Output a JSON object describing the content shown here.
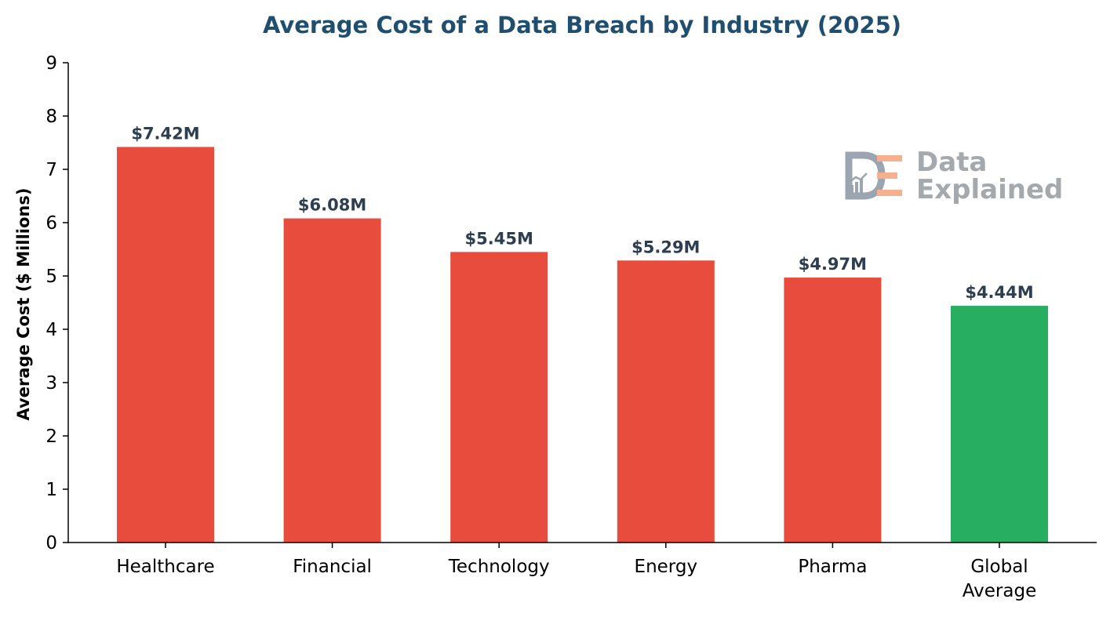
{
  "chart_data": {
    "type": "bar",
    "title": "Average Cost of a Data Breach by Industry (2025)",
    "xlabel": "",
    "ylabel": "Average Cost ($ Millions)",
    "ylim": [
      0,
      9
    ],
    "yticks": [
      0,
      1,
      2,
      3,
      4,
      5,
      6,
      7,
      8,
      9
    ],
    "grid": false,
    "categories": [
      "Healthcare",
      "Financial",
      "Technology",
      "Energy",
      "Pharma",
      "Global\nAverage"
    ],
    "values": [
      7.42,
      6.08,
      5.45,
      5.29,
      4.97,
      4.44
    ],
    "data_labels": [
      "$7.42M",
      "$6.08M",
      "$5.45M",
      "$5.29M",
      "$4.97M",
      "$4.44M"
    ],
    "bar_colors": [
      "#e74c3c",
      "#e74c3c",
      "#e74c3c",
      "#e74c3c",
      "#e74c3c",
      "#27ae60"
    ]
  },
  "colors": {
    "title": "#1f4e6e",
    "data_label": "#2c3e50",
    "axis": "#000000",
    "logo_gray": "#9aa5b1",
    "logo_orange": "#f6b08e",
    "logo_text": "#a3a9ad"
  },
  "watermark": {
    "icon": "data-explained-logo-icon",
    "line1": "Data",
    "line2": "Explained"
  }
}
